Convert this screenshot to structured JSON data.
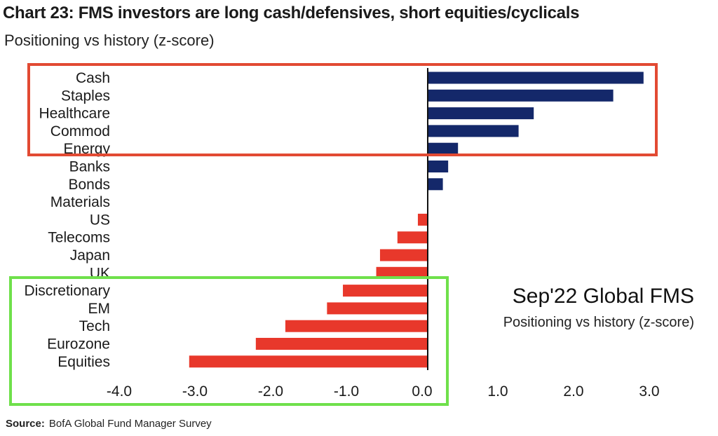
{
  "header": {
    "title": "Chart 23: FMS investors are long cash/defensives, short equities/cyclicals",
    "subtitle": "Positioning vs history (z-score)"
  },
  "inset": {
    "title": "Sep'22 Global FMS",
    "subtitle": "Positioning vs history (z-score)"
  },
  "footer": {
    "source_label": "Source:",
    "source_text": "BofA Global Fund Manager Survey"
  },
  "colors": {
    "positive": "#14286a",
    "negative": "#e8382b",
    "highlight_top": "#e24a33",
    "highlight_bottom": "#6fe04b"
  },
  "chart_data": {
    "type": "bar",
    "orientation": "horizontal",
    "categories": [
      "Cash",
      "Staples",
      "Healthcare",
      "Commod",
      "Energy",
      "Banks",
      "Bonds",
      "Materials",
      "US",
      "Telecoms",
      "Japan",
      "UK",
      "Discretionary",
      "EM",
      "Tech",
      "Eurozone",
      "Equities"
    ],
    "values": [
      2.85,
      2.45,
      1.4,
      1.2,
      0.4,
      0.27,
      0.2,
      0.0,
      -0.13,
      -0.4,
      -0.63,
      -0.68,
      -1.12,
      -1.33,
      -1.88,
      -2.27,
      -3.15
    ],
    "xlim": [
      -4.0,
      3.0
    ],
    "xticks": [
      "-4.0",
      "-3.0",
      "-2.0",
      "-1.0",
      "0.0",
      "1.0",
      "2.0",
      "3.0"
    ],
    "xtick_values": [
      -4,
      -3,
      -2,
      -1,
      0,
      1,
      2,
      3
    ],
    "highlight_boxes": [
      {
        "name": "long cash/defensives",
        "categories": [
          "Cash",
          "Staples",
          "Healthcare",
          "Commod",
          "Energy"
        ],
        "color": "red"
      },
      {
        "name": "short equities/cyclicals",
        "categories": [
          "Discretionary",
          "EM",
          "Tech",
          "Eurozone",
          "Equities"
        ],
        "color": "green"
      }
    ],
    "grid": false,
    "xlabel": "",
    "ylabel": ""
  }
}
